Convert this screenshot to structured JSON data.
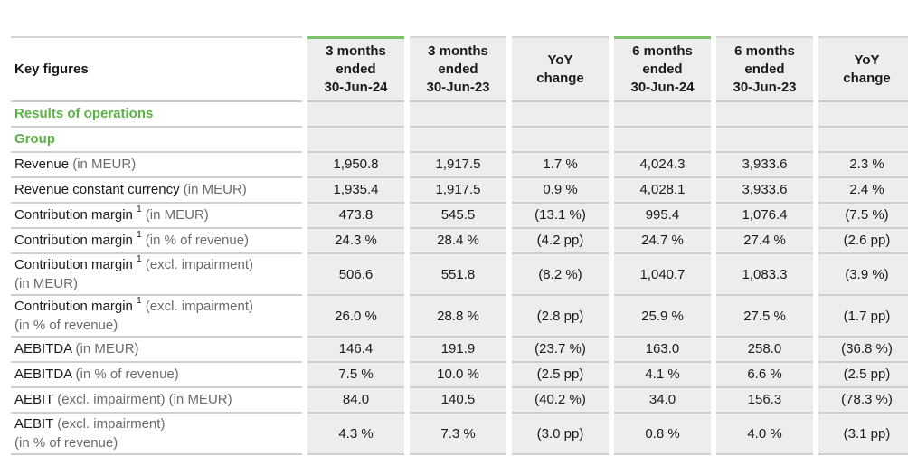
{
  "table": {
    "header": {
      "label": "Key figures",
      "columns": [
        {
          "line1": "3 months",
          "line2": "ended",
          "line3": "30-Jun-24",
          "highlight": true
        },
        {
          "line1": "3 months",
          "line2": "ended",
          "line3": "30-Jun-23",
          "highlight": false
        },
        {
          "line1": "YoY",
          "line2": "change",
          "line3": "",
          "highlight": false
        },
        {
          "line1": "6 months",
          "line2": "ended",
          "line3": "30-Jun-24",
          "highlight": true
        },
        {
          "line1": "6 months",
          "line2": "ended",
          "line3": "30-Jun-23",
          "highlight": false
        },
        {
          "line1": "YoY",
          "line2": "change",
          "line3": "",
          "highlight": false
        }
      ]
    },
    "sections": {
      "results": "Results of operations",
      "group": "Group"
    },
    "rows": [
      {
        "label": "Revenue",
        "sup": "",
        "unit": " (in MEUR)",
        "line2": "",
        "values": [
          "1,950.8",
          "1,917.5",
          "1.7 %",
          "4,024.3",
          "3,933.6",
          "2.3 %"
        ]
      },
      {
        "label": "Revenue constant currency",
        "sup": "",
        "unit": " (in MEUR)",
        "line2": "",
        "values": [
          "1,935.4",
          "1,917.5",
          "0.9 %",
          "4,028.1",
          "3,933.6",
          "2.4 %"
        ]
      },
      {
        "label": "Contribution margin",
        "sup": "1",
        "unit": " (in MEUR)",
        "line2": "",
        "values": [
          "473.8",
          "545.5",
          "(13.1 %)",
          "995.4",
          "1,076.4",
          "(7.5 %)"
        ]
      },
      {
        "label": "Contribution margin",
        "sup": "1",
        "unit": " (in % of revenue)",
        "line2": "",
        "values": [
          "24.3 %",
          "28.4 %",
          "(4.2 pp)",
          "24.7 %",
          "27.4 %",
          "(2.6 pp)"
        ]
      },
      {
        "label": "Contribution margin",
        "sup": "1",
        "unit": " (excl. impairment)",
        "line2": "(in MEUR)",
        "values": [
          "506.6",
          "551.8",
          "(8.2 %)",
          "1,040.7",
          "1,083.3",
          "(3.9 %)"
        ]
      },
      {
        "label": "Contribution margin",
        "sup": "1",
        "unit": " (excl. impairment)",
        "line2": "(in % of revenue)",
        "values": [
          "26.0 %",
          "28.8 %",
          "(2.8 pp)",
          "25.9 %",
          "27.5 %",
          "(1.7 pp)"
        ]
      },
      {
        "label": "AEBITDA",
        "sup": "",
        "unit": " (in MEUR)",
        "line2": "",
        "values": [
          "146.4",
          "191.9",
          "(23.7 %)",
          "163.0",
          "258.0",
          "(36.8 %)"
        ]
      },
      {
        "label": "AEBITDA",
        "sup": "",
        "unit": " (in % of revenue)",
        "line2": "",
        "values": [
          "7.5 %",
          "10.0 %",
          "(2.5 pp)",
          "4.1 %",
          "6.6 %",
          "(2.5 pp)"
        ]
      },
      {
        "label": "AEBIT",
        "sup": "",
        "unit": " (excl. impairment) (in MEUR)",
        "line2": "",
        "values": [
          "84.0",
          "140.5",
          "(40.2 %)",
          "34.0",
          "156.3",
          "(78.3 %)"
        ]
      },
      {
        "label": "AEBIT",
        "sup": "",
        "unit": " (excl. impairment)",
        "line2": "(in % of revenue)",
        "values": [
          "4.3 %",
          "7.3 %",
          "(3.0 pp)",
          "0.8 %",
          "4.0 %",
          "(3.1 pp)"
        ]
      }
    ]
  }
}
